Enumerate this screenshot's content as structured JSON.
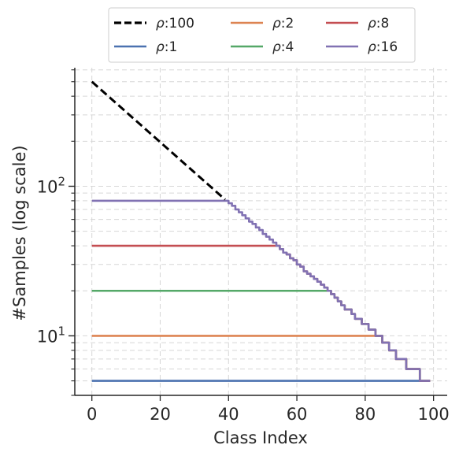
{
  "chart_data": {
    "type": "line",
    "title": "",
    "xlabel": "Class Index",
    "ylabel": "#Samples (log scale)",
    "xlim": [
      -5,
      104
    ],
    "ylim": [
      4,
      620
    ],
    "yscale": "log",
    "grid": true,
    "legend_position": "top-center",
    "x_ticks": [
      0,
      20,
      40,
      60,
      80,
      100
    ],
    "x_tick_labels": [
      "0",
      "20",
      "40",
      "60",
      "80",
      "100"
    ],
    "y_major_ticks": [
      {
        "value": 10,
        "base": "10",
        "exp": "1"
      },
      {
        "value": 100,
        "base": "10",
        "exp": "2"
      }
    ],
    "series": [
      {
        "name": "ρ:100",
        "symbol": "ρ",
        "suffix": ":100",
        "color": "#000000",
        "dashed": true,
        "base": 500,
        "cap": 500
      },
      {
        "name": "ρ:1",
        "symbol": "ρ",
        "suffix": ":1",
        "color": "#4c72b0",
        "dashed": false,
        "base": 500,
        "cap": 5
      },
      {
        "name": "ρ:2",
        "symbol": "ρ",
        "suffix": ":2",
        "color": "#dd8452",
        "dashed": false,
        "base": 500,
        "cap": 10
      },
      {
        "name": "ρ:4",
        "symbol": "ρ",
        "suffix": ":4",
        "color": "#55a868",
        "dashed": false,
        "base": 500,
        "cap": 20
      },
      {
        "name": "ρ:8",
        "symbol": "ρ",
        "suffix": ":8",
        "color": "#c44e52",
        "dashed": false,
        "base": 500,
        "cap": 40
      },
      {
        "name": "ρ:16",
        "symbol": "ρ",
        "suffix": ":16",
        "color": "#8172b3",
        "dashed": false,
        "base": 500,
        "cap": 80
      }
    ],
    "series_rule": "y(i) = min(cap, floor(base * (1/100)^(i/99))) for class index i = 0..99"
  }
}
